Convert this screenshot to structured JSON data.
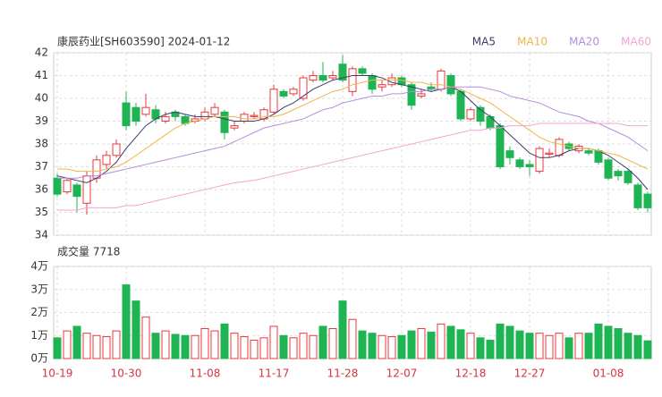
{
  "chart_data": [
    {
      "type": "candlestick",
      "title": "康辰药业[SH603590] 2024-01-12",
      "categories": [
        "10-19",
        null,
        null,
        null,
        null,
        null,
        null,
        "10-30",
        null,
        null,
        null,
        null,
        null,
        null,
        null,
        "11-08",
        null,
        null,
        null,
        null,
        null,
        null,
        "11-17",
        null,
        null,
        null,
        null,
        null,
        null,
        "11-28",
        null,
        null,
        null,
        null,
        null,
        "12-07",
        null,
        null,
        null,
        null,
        null,
        null,
        "12-18",
        null,
        null,
        null,
        null,
        null,
        "12-27",
        null,
        null,
        null,
        null,
        null,
        null,
        null,
        "01-08",
        null,
        null,
        null,
        null
      ],
      "open": [
        36.5,
        35.9,
        36.2,
        35.4,
        36.5,
        37.1,
        37.5,
        39.8,
        39.6,
        39.3,
        39.5,
        39.0,
        39.4,
        39.2,
        39.0,
        39.1,
        39.3,
        39.4,
        38.7,
        39.0,
        39.2,
        39.1,
        39.4,
        40.3,
        40.2,
        40.0,
        40.8,
        41.0,
        40.9,
        41.5,
        40.3,
        41.3,
        41.0,
        40.5,
        40.6,
        40.9,
        40.6,
        40.1,
        40.5,
        40.4,
        41.0,
        40.3,
        39.1,
        39.6,
        39.2,
        38.8,
        37.7,
        37.3,
        37.1,
        36.8,
        37.55,
        37.5,
        38.0,
        37.7,
        37.7,
        37.7,
        37.3,
        36.8,
        36.8,
        36.2,
        35.8
      ],
      "high": [
        36.7,
        36.5,
        36.3,
        36.8,
        37.5,
        37.7,
        38.2,
        40.3,
        39.8,
        40.2,
        39.7,
        39.4,
        39.5,
        39.3,
        39.3,
        39.6,
        39.8,
        39.5,
        39.0,
        39.4,
        39.4,
        39.6,
        40.6,
        40.4,
        40.5,
        41.0,
        41.2,
        41.6,
        41.2,
        41.9,
        41.4,
        41.4,
        41.1,
        40.8,
        41.1,
        41.0,
        40.7,
        40.4,
        40.7,
        41.3,
        41.1,
        40.4,
        39.6,
        39.7,
        39.3,
        38.9,
        37.9,
        37.4,
        37.3,
        37.9,
        37.8,
        38.3,
        38.1,
        38.0,
        37.8,
        37.8,
        37.4,
        36.9,
        36.9,
        36.3,
        35.9
      ],
      "low": [
        35.7,
        35.8,
        35.0,
        34.9,
        36.3,
        36.9,
        37.4,
        38.6,
        38.8,
        39.2,
        38.9,
        38.9,
        39.0,
        38.8,
        38.9,
        39.0,
        39.2,
        38.2,
        38.6,
        38.9,
        39.1,
        39.0,
        39.3,
        40.0,
        40.1,
        39.9,
        40.7,
        40.7,
        40.8,
        40.7,
        40.1,
        41.0,
        40.2,
        40.3,
        40.5,
        40.5,
        39.5,
        40.0,
        40.3,
        40.3,
        40.1,
        39.0,
        39.0,
        38.8,
        38.6,
        36.9,
        37.1,
        36.9,
        36.6,
        36.7,
        37.4,
        37.4,
        37.7,
        37.6,
        37.5,
        37.1,
        36.4,
        36.4,
        36.2,
        35.1,
        35.0
      ],
      "close": [
        35.8,
        36.4,
        35.7,
        36.6,
        37.3,
        37.5,
        38.0,
        38.8,
        39.0,
        39.6,
        39.1,
        39.2,
        39.2,
        38.9,
        39.1,
        39.4,
        39.6,
        38.5,
        38.8,
        39.3,
        39.25,
        39.5,
        40.4,
        40.1,
        40.4,
        40.9,
        41.0,
        40.8,
        41.0,
        40.8,
        41.3,
        41.1,
        40.4,
        40.6,
        40.9,
        40.6,
        39.7,
        40.2,
        40.4,
        41.2,
        40.2,
        39.1,
        39.5,
        39.0,
        38.7,
        37.0,
        37.4,
        37.0,
        37.0,
        37.8,
        37.6,
        38.2,
        37.8,
        37.9,
        37.6,
        37.2,
        36.5,
        36.6,
        36.3,
        35.2,
        35.2
      ],
      "up_color": "#e8383d",
      "down_color": "#1fb453",
      "series": [
        {
          "name": "MA5",
          "color": "#3b3b6b",
          "values": [
            36.6,
            36.5,
            36.4,
            36.3,
            36.5,
            36.8,
            37.2,
            37.8,
            38.3,
            38.8,
            39.1,
            39.3,
            39.4,
            39.3,
            39.2,
            39.2,
            39.2,
            39.1,
            39.0,
            39.0,
            39.0,
            39.1,
            39.3,
            39.6,
            39.8,
            40.1,
            40.4,
            40.6,
            40.8,
            40.9,
            41.0,
            41.0,
            41.0,
            40.9,
            40.7,
            40.6,
            40.5,
            40.4,
            40.3,
            40.4,
            40.5,
            40.3,
            39.9,
            39.5,
            39.2,
            38.8,
            38.4,
            38.0,
            37.6,
            37.4,
            37.4,
            37.5,
            37.7,
            37.8,
            37.8,
            37.7,
            37.5,
            37.2,
            36.9,
            36.5,
            36.0
          ]
        },
        {
          "name": "MA10",
          "color": "#f0b447",
          "values": [
            36.9,
            36.9,
            36.8,
            36.8,
            36.8,
            36.9,
            37.0,
            37.2,
            37.5,
            37.8,
            38.1,
            38.4,
            38.7,
            38.9,
            39.0,
            39.1,
            39.2,
            39.2,
            39.2,
            39.1,
            39.1,
            39.2,
            39.2,
            39.3,
            39.5,
            39.7,
            39.9,
            40.1,
            40.3,
            40.4,
            40.6,
            40.7,
            40.8,
            40.8,
            40.8,
            40.8,
            40.7,
            40.7,
            40.6,
            40.6,
            40.5,
            40.4,
            40.2,
            40.0,
            39.8,
            39.5,
            39.2,
            38.9,
            38.6,
            38.3,
            38.1,
            38.0,
            37.9,
            37.8,
            37.8,
            37.7,
            37.6,
            37.5,
            37.3,
            37.1,
            36.9
          ]
        },
        {
          "name": "MA20",
          "color": "#b58ce0",
          "values": [
            36.5,
            36.5,
            36.5,
            36.6,
            36.6,
            36.7,
            36.8,
            36.9,
            37.0,
            37.1,
            37.2,
            37.3,
            37.4,
            37.5,
            37.6,
            37.7,
            37.8,
            37.9,
            38.1,
            38.3,
            38.5,
            38.7,
            38.8,
            38.9,
            39.0,
            39.1,
            39.3,
            39.5,
            39.6,
            39.8,
            39.9,
            40.0,
            40.1,
            40.1,
            40.2,
            40.2,
            40.3,
            40.3,
            40.4,
            40.4,
            40.5,
            40.5,
            40.5,
            40.5,
            40.4,
            40.3,
            40.1,
            40.0,
            39.9,
            39.8,
            39.6,
            39.4,
            39.3,
            39.2,
            39.0,
            38.9,
            38.7,
            38.5,
            38.3,
            38.0,
            37.7
          ]
        },
        {
          "name": "MA60",
          "color": "#f4a3d6",
          "values": [
            35.1,
            35.1,
            35.1,
            35.2,
            35.2,
            35.2,
            35.2,
            35.3,
            35.3,
            35.4,
            35.5,
            35.6,
            35.7,
            35.8,
            35.9,
            36.0,
            36.1,
            36.2,
            36.3,
            36.35,
            36.4,
            36.5,
            36.6,
            36.7,
            36.8,
            36.9,
            37.0,
            37.1,
            37.2,
            37.3,
            37.4,
            37.5,
            37.6,
            37.7,
            37.8,
            37.9,
            38.0,
            38.1,
            38.2,
            38.3,
            38.4,
            38.5,
            38.6,
            38.6,
            38.7,
            38.7,
            38.8,
            38.8,
            38.8,
            38.9,
            38.9,
            38.9,
            38.9,
            38.9,
            38.9,
            38.9,
            38.9,
            38.9,
            38.8,
            38.8,
            38.8
          ]
        }
      ],
      "ylim": [
        34,
        42
      ],
      "yticks": [
        34,
        35,
        36,
        37,
        38,
        39,
        40,
        41,
        42
      ],
      "grid": true
    },
    {
      "type": "bar",
      "title": "成交量 7718",
      "values": [
        0.9,
        1.2,
        1.4,
        1.1,
        1.0,
        0.95,
        1.2,
        3.2,
        2.5,
        1.8,
        1.1,
        1.2,
        1.05,
        1.0,
        1.0,
        1.3,
        1.2,
        1.5,
        1.1,
        0.95,
        0.8,
        0.9,
        1.4,
        1.0,
        0.9,
        1.1,
        1.0,
        1.4,
        1.3,
        2.5,
        1.7,
        1.2,
        1.1,
        1.0,
        0.95,
        1.0,
        1.2,
        1.3,
        1.15,
        1.5,
        1.4,
        1.25,
        1.1,
        0.9,
        0.8,
        1.5,
        1.4,
        1.2,
        1.1,
        1.1,
        1.0,
        1.1,
        0.9,
        1.1,
        1.1,
        1.5,
        1.4,
        1.3,
        1.1,
        1.0,
        0.77
      ],
      "ylim": [
        0,
        4
      ],
      "yticks": [
        {
          "value": 0,
          "label": "0万"
        },
        {
          "value": 1,
          "label": "1万"
        },
        {
          "value": 2,
          "label": "2万"
        },
        {
          "value": 3,
          "label": "3万"
        },
        {
          "value": 4,
          "label": "4万"
        }
      ],
      "grid": true
    }
  ]
}
